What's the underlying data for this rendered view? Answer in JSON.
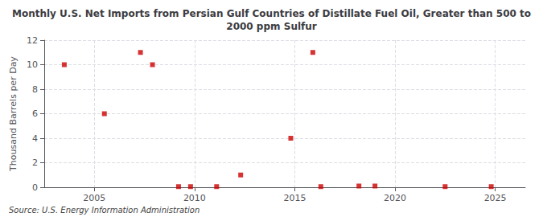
{
  "chart_data": {
    "type": "scatter",
    "title": "Monthly U.S. Net Imports from Persian Gulf Countries of Distillate Fuel Oil, Greater than 500 to\n2000 ppm Sulfur",
    "ylabel": "Thousand Barrels per Day",
    "annotations": [
      "Source: U.S. Energy Information Administration"
    ],
    "x": [
      2003.5,
      2005.5,
      2007.3,
      2007.9,
      2009.2,
      2009.8,
      2011.1,
      2012.3,
      2014.8,
      2015.9,
      2016.3,
      2018.2,
      2019.0,
      2022.5,
      2024.8
    ],
    "values": [
      10,
      6,
      11,
      10,
      0.05,
      0.05,
      0.05,
      1,
      4,
      11,
      0.05,
      0.1,
      0.1,
      0.05,
      0.05
    ],
    "color": "#cc0000",
    "marker": "square",
    "xlim": [
      2002.5,
      2026.5
    ],
    "xticks": [
      2005,
      2010,
      2015,
      2020,
      2025
    ],
    "ylim": [
      0,
      12
    ],
    "yticks": [
      0,
      2,
      4,
      6,
      8,
      10,
      12
    ],
    "grid": true
  }
}
